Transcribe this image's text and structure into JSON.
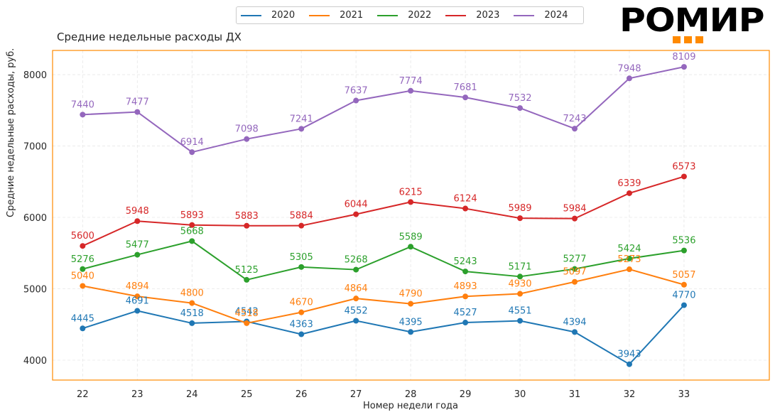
{
  "logo": {
    "text": "РОМИР",
    "accent_color": "#ff8a00"
  },
  "chart_data": {
    "type": "line",
    "title": "Средние недельные расходы ДХ",
    "xlabel": "Номер недели года",
    "ylabel": "Средние недельные расходы, руб.",
    "x": [
      22,
      23,
      24,
      25,
      26,
      27,
      28,
      29,
      30,
      31,
      32,
      33
    ],
    "xticks": [
      "22",
      "23",
      "24",
      "25",
      "26",
      "27",
      "28",
      "29",
      "30",
      "31",
      "32",
      "33"
    ],
    "yticks": [
      4000,
      5000,
      6000,
      7000,
      8000
    ],
    "xlim": [
      21.45,
      34.56
    ],
    "ylim": [
      3721,
      8339
    ],
    "grid": true,
    "legend_position": "top-center",
    "frame_color": "#ff8a00",
    "series": [
      {
        "name": "2020",
        "color": "#1f77b4",
        "values": [
          4445,
          4691,
          4518,
          4542,
          4363,
          4552,
          4395,
          4527,
          4551,
          4394,
          3943,
          4770
        ]
      },
      {
        "name": "2021",
        "color": "#ff7f0e",
        "values": [
          5040,
          4894,
          4800,
          4518,
          4670,
          4864,
          4790,
          4893,
          4930,
          5097,
          5273,
          5057
        ]
      },
      {
        "name": "2022",
        "color": "#2ca02c",
        "values": [
          5276,
          5477,
          5668,
          5125,
          5305,
          5268,
          5589,
          5243,
          5171,
          5277,
          5424,
          5536
        ]
      },
      {
        "name": "2023",
        "color": "#d62728",
        "values": [
          5600,
          5948,
          5893,
          5883,
          5884,
          6044,
          6215,
          6124,
          5989,
          5984,
          6339,
          6573
        ]
      },
      {
        "name": "2024",
        "color": "#9467bd",
        "values": [
          7440,
          7477,
          6914,
          7098,
          7241,
          7637,
          7774,
          7681,
          7532,
          7243,
          7948,
          8109
        ]
      }
    ]
  }
}
